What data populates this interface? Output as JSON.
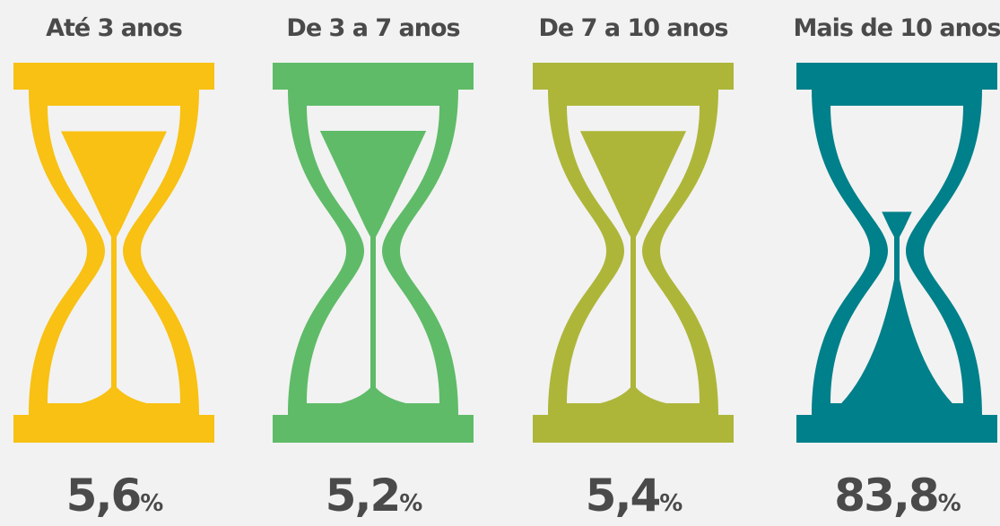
{
  "chart_data": {
    "type": "pictogram",
    "categories": [
      "Até 3 anos",
      "De 3 a 7 anos",
      "De 7 a 10 anos",
      "Mais de 10 anos"
    ],
    "values": [
      5.6,
      5.2,
      5.4,
      83.8
    ],
    "value_labels": [
      "5,6%",
      "5,2%",
      "5,4%",
      "83,8%"
    ],
    "colors": [
      "#f8c113",
      "#5fbb68",
      "#adb639",
      "#00808a"
    ]
  }
}
